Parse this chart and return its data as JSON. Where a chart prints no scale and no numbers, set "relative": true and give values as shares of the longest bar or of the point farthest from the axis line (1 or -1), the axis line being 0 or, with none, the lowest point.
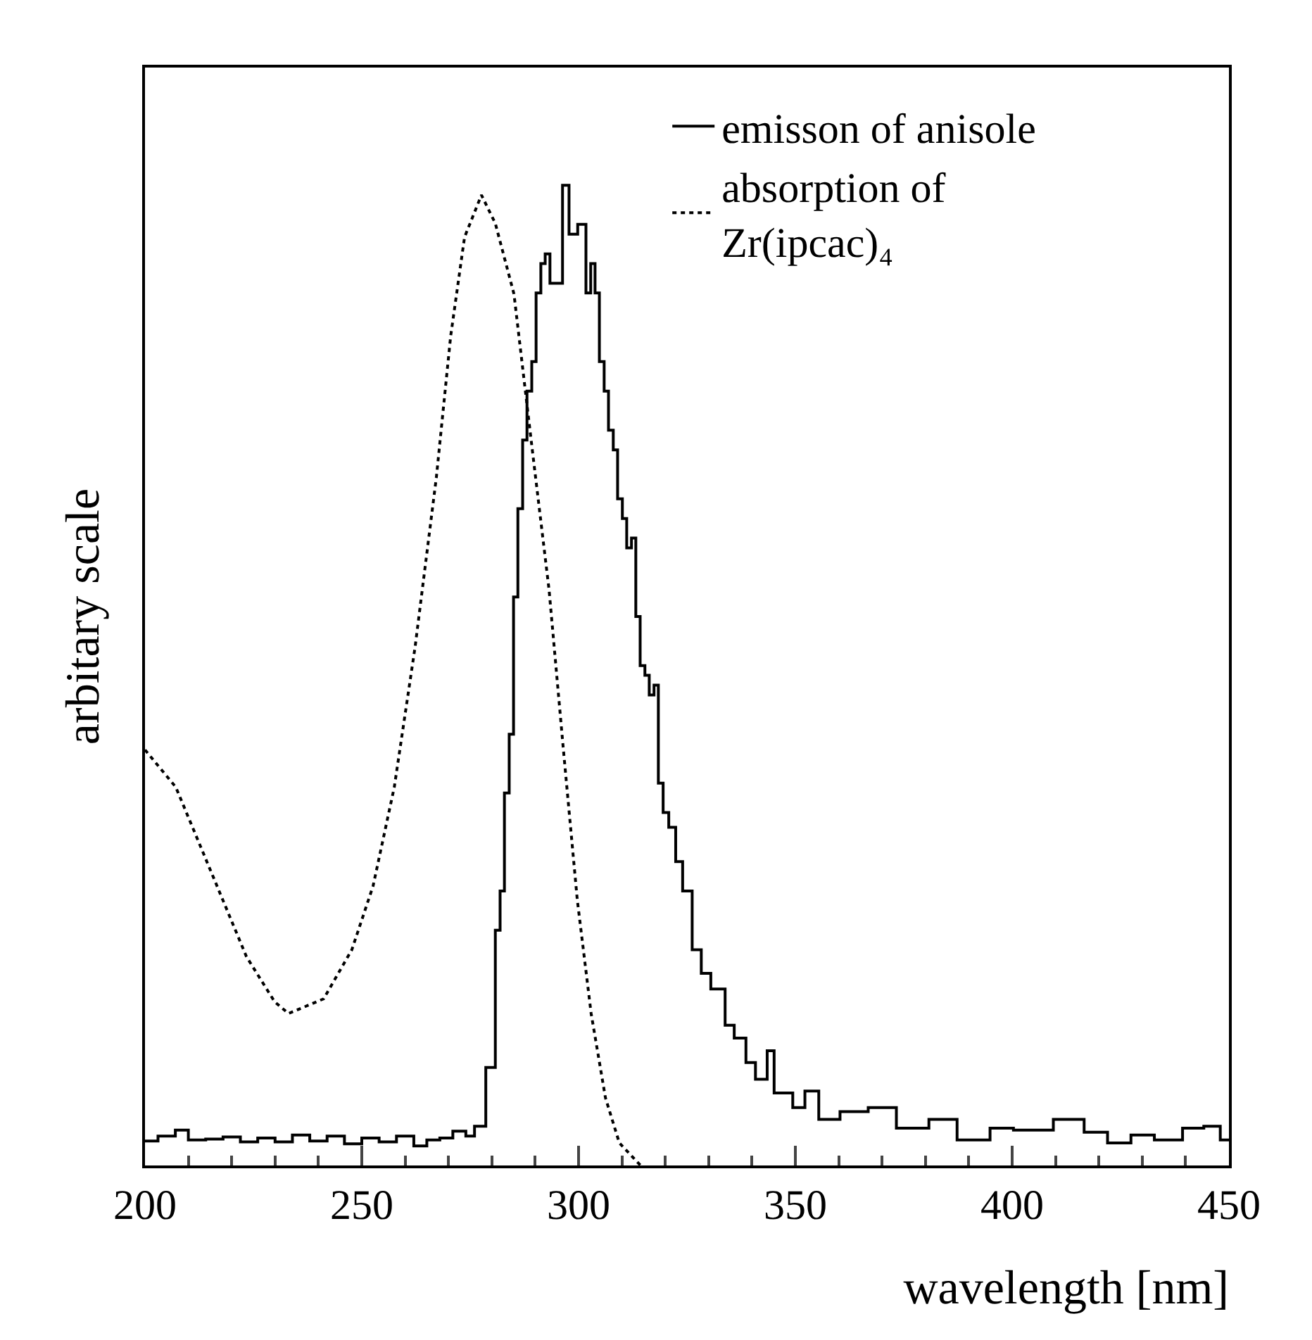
{
  "chart_data": {
    "type": "line",
    "xlabel": "wavelength [nm]",
    "ylabel": "arbitary scale",
    "relative": true,
    "xlim": [
      200,
      450
    ],
    "xticks": [
      200,
      250,
      300,
      350,
      400,
      450
    ],
    "grid": false,
    "legend": "top right",
    "marker": "none",
    "series": [
      {
        "name": "emisson of anisole",
        "type": "step",
        "color": "#000000",
        "line_style": "solid",
        "x": [
          200,
          203,
          207,
          210,
          214,
          218,
          222,
          226,
          230,
          234,
          238,
          242,
          246,
          250,
          254,
          258,
          262,
          265,
          268,
          271,
          274,
          276,
          278.6,
          280.8,
          281.9,
          282.9,
          284.0,
          285.0,
          286.0,
          287.1,
          288.1,
          289.2,
          290.2,
          291.3,
          292.3,
          293.4,
          295.3,
          296.3,
          297.8,
          299.8,
          301.7,
          302.8,
          303.8,
          304.8,
          305.9,
          306.9,
          308.0,
          309.0,
          310.1,
          311.1,
          312.2,
          313.2,
          314.2,
          315.3,
          316.3,
          317.4,
          318.4,
          319.5,
          320.8,
          322.4,
          324.0,
          326.2,
          328.3,
          330.5,
          333.8,
          335.9,
          338.6,
          340.8,
          343.5,
          345.1,
          349.4,
          352.2,
          355.4,
          360.3,
          366.8,
          373.3,
          380.8,
          387.3,
          394.9,
          400.3,
          409.5,
          416.6,
          422.0,
          427.4,
          432.8,
          439.3,
          444.2,
          448.0,
          450
        ],
        "values": [
          0.025,
          0.03,
          0.036,
          0.026,
          0.027,
          0.029,
          0.024,
          0.028,
          0.024,
          0.031,
          0.025,
          0.03,
          0.022,
          0.028,
          0.024,
          0.03,
          0.02,
          0.026,
          0.028,
          0.035,
          0.03,
          0.04,
          0.1,
          0.24,
          0.28,
          0.38,
          0.44,
          0.58,
          0.67,
          0.74,
          0.79,
          0.82,
          0.89,
          0.92,
          0.93,
          0.9,
          0.9,
          1.0,
          0.95,
          0.96,
          0.89,
          0.92,
          0.89,
          0.82,
          0.79,
          0.75,
          0.73,
          0.68,
          0.66,
          0.63,
          0.64,
          0.56,
          0.51,
          0.5,
          0.48,
          0.49,
          0.39,
          0.36,
          0.345,
          0.31,
          0.28,
          0.22,
          0.196,
          0.18,
          0.143,
          0.13,
          0.105,
          0.088,
          0.117,
          0.074,
          0.059,
          0.076,
          0.047,
          0.055,
          0.059,
          0.038,
          0.047,
          0.026,
          0.038,
          0.036,
          0.047,
          0.034,
          0.023,
          0.031,
          0.026,
          0.038,
          0.04,
          0.026,
          0.026
        ]
      },
      {
        "name": "absorption of Zr(ipcac)₄",
        "color": "#000000",
        "line_style": "dotted",
        "x": [
          200,
          207.1,
          215.3,
          223.4,
          229.9,
          233.1,
          241.2,
          247.7,
          252.6,
          257.5,
          262.3,
          267.2,
          270.5,
          273.7,
          277.6,
          280.8,
          285.1,
          289.3,
          293.2,
          296.4,
          299.7,
          302.9,
          306.2,
          309.4,
          314.3
        ],
        "values": [
          0.424,
          0.386,
          0.299,
          0.213,
          0.167,
          0.155,
          0.17,
          0.22,
          0.285,
          0.386,
          0.529,
          0.702,
          0.846,
          0.947,
          0.99,
          0.961,
          0.889,
          0.731,
          0.587,
          0.429,
          0.271,
          0.155,
          0.069,
          0.023,
          0
        ]
      }
    ]
  }
}
